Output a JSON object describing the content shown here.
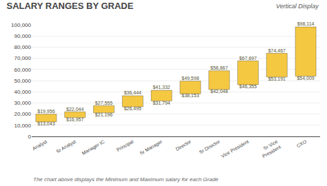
{
  "chart_data": {
    "type": "bar",
    "title": "SALARY RANGES BY GRADE",
    "subtitle": "Vertical Display",
    "footer": "The chart above displays the Minimum and Maximum salary for each Grade",
    "categories": [
      "Analyst",
      "Sr Analyst",
      "Manager IC",
      "Principal",
      "Sr Manager",
      "Director",
      "Sr Director",
      "Vice President",
      "Sr Vice\nPresident",
      "CXO"
    ],
    "min_values": [
      13043,
      16957,
      21196,
      26495,
      31794,
      38153,
      42048,
      46355,
      53191,
      54009
    ],
    "max_values": [
      19956,
      22044,
      27555,
      36444,
      41332,
      49598,
      58867,
      67697,
      74467,
      98114
    ],
    "min_value_labels": [
      "$13,043",
      "$16,957",
      "$21,196",
      "$26,495",
      "$31,794",
      "$38,153",
      "$42,048",
      "$46,355",
      "$53,191",
      "$54,009"
    ],
    "max_value_labels": [
      "$19,956",
      "$22,044",
      "$27,555",
      "$36,444",
      "$41,332",
      "$49,598",
      "$58,867",
      "$67,697",
      "$74,467",
      "$98,114"
    ],
    "data_labels": true,
    "color": "#F5C842",
    "ylim": [
      0,
      100000
    ],
    "yticks": [
      0,
      {
        "value": 10000,
        "label": "10,000"
      },
      {
        "value": 20000,
        "label": "20,000"
      },
      {
        "value": 30000,
        "label": "30,000"
      },
      {
        "value": 40000,
        "label": "40,000"
      },
      {
        "value": 50000,
        "label": "50,000"
      },
      {
        "value": 60000,
        "label": "60,000"
      },
      {
        "value": 70000,
        "label": "70,000"
      },
      {
        "value": 80000,
        "label": "80,000"
      },
      {
        "value": 90000,
        "label": "90,000"
      },
      {
        "value": 100000,
        "label": "100,000"
      }
    ],
    "grid": true
  }
}
